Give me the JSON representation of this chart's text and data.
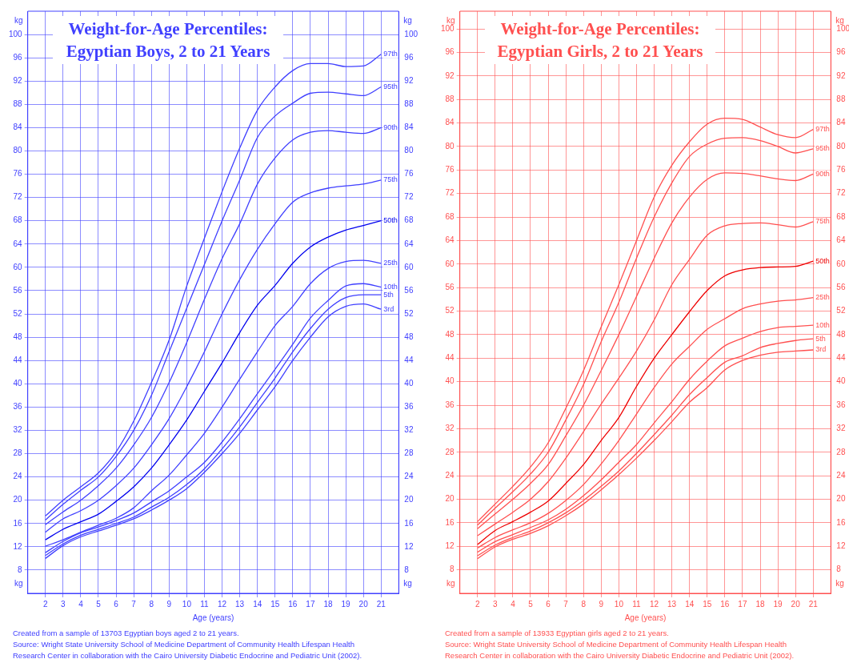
{
  "chart_data": [
    {
      "type": "line",
      "title": "Weight-for-Age Percentiles: Egyptian Boys, 2 to 21 Years",
      "xlabel": "Age (years)",
      "ylabel": "kg",
      "y2label": "kg",
      "x": [
        2,
        3,
        4,
        5,
        6,
        7,
        8,
        9,
        10,
        11,
        12,
        13,
        14,
        15,
        16,
        17,
        18,
        19,
        20,
        21
      ],
      "xlim": [
        1,
        22
      ],
      "xticks": [
        2,
        3,
        4,
        5,
        6,
        7,
        8,
        9,
        10,
        11,
        12,
        13,
        14,
        15,
        16,
        17,
        18,
        19,
        20,
        21
      ],
      "ylim": [
        4,
        104
      ],
      "yticks": [
        8,
        12,
        16,
        20,
        24,
        28,
        32,
        36,
        40,
        44,
        48,
        52,
        56,
        60,
        64,
        68,
        72,
        76,
        80,
        84,
        88,
        92,
        96,
        100
      ],
      "y2lim": [
        4,
        104
      ],
      "y2ticks": [
        8,
        12,
        16,
        20,
        24,
        28,
        32,
        36,
        40,
        44,
        48,
        52,
        56,
        60,
        64,
        68,
        72,
        76,
        80,
        84,
        88,
        92,
        96,
        100
      ],
      "grid": true,
      "legend": false,
      "marker": "none",
      "line_style": "solid",
      "series": [
        {
          "name": "97th",
          "color": "#4040ff",
          "values": [
            17.3,
            20,
            22.3,
            24.7,
            28.3,
            33.6,
            40.2,
            47.5,
            56.8,
            65,
            73,
            80.5,
            87,
            91,
            93.8,
            95,
            95,
            94.5,
            94.6,
            96.6
          ]
        },
        {
          "name": "95th",
          "color": "#4040ff",
          "values": [
            16.6,
            19.3,
            21.7,
            24,
            27.5,
            32,
            38,
            45.5,
            53,
            60.5,
            68,
            75,
            82.3,
            86,
            88.2,
            89.9,
            90.1,
            89.8,
            89.5,
            91
          ]
        },
        {
          "name": "90th",
          "color": "#4040ff",
          "values": [
            15.8,
            18,
            20,
            22.5,
            25.5,
            29.5,
            34.2,
            40.2,
            47.1,
            54.5,
            61.5,
            67.5,
            74.3,
            78.8,
            81.9,
            83.2,
            83.5,
            83.2,
            83,
            84
          ]
        },
        {
          "name": "75th",
          "color": "#4040ff",
          "values": [
            14.5,
            16.8,
            18.2,
            20,
            22.5,
            25.5,
            29.5,
            34,
            39.5,
            45.5,
            52,
            57.9,
            63.1,
            67.5,
            71.2,
            72.8,
            73.6,
            74,
            74.3,
            75
          ]
        },
        {
          "name": "50th",
          "color": "#0000ee",
          "values": [
            13.2,
            15,
            16.3,
            17.6,
            19.8,
            22.3,
            25.5,
            29.5,
            33.8,
            38.7,
            43.6,
            48.8,
            53.5,
            56.9,
            60.7,
            63.5,
            65.2,
            66.4,
            67.2,
            68
          ]
        },
        {
          "name": "25th",
          "color": "#4040ff",
          "values": [
            12.1,
            13.2,
            14.5,
            15.7,
            16.9,
            18.7,
            21.6,
            24.3,
            27.8,
            31.5,
            36,
            40.8,
            45.5,
            50,
            53.3,
            57.2,
            59.8,
            61,
            61.2,
            60.7
          ]
        },
        {
          "name": "10th",
          "color": "#4040ff",
          "values": [
            11,
            12.9,
            14.4,
            15.4,
            16.5,
            17.8,
            19.7,
            21.6,
            24,
            26.5,
            30,
            34,
            38.3,
            42.5,
            46.8,
            51.3,
            54.3,
            56.8,
            57.2,
            56.6
          ]
        },
        {
          "name": "5th",
          "color": "#4040ff",
          "values": [
            10.5,
            12.5,
            14,
            15,
            16,
            17.1,
            18.8,
            20.5,
            22.7,
            25.4,
            28.8,
            32.6,
            36.8,
            41,
            45.5,
            49.5,
            52.8,
            54.8,
            55.3,
            55.3
          ]
        },
        {
          "name": "3rd",
          "color": "#4040ff",
          "values": [
            10,
            12.2,
            13.7,
            14.7,
            15.7,
            16.8,
            18.3,
            20,
            22,
            24.8,
            28,
            31.5,
            35.5,
            39.5,
            44,
            48,
            51.5,
            53.3,
            53.7,
            52.8
          ]
        }
      ],
      "annotations": [
        "Created from a sample of 13703 Egyptian boys aged 2 to 21 years.",
        "Source: Wright State University School of  Medicine Department of Community Health Lifespan Health Research Center in collaboration with the Cairo University Diabetic Endocrine and Pediatric Unit (2002)."
      ]
    },
    {
      "type": "line",
      "title": "Weight-for-Age Percentiles: Egyptian Girls, 2 to 21 Years",
      "xlabel": "Age (years)",
      "ylabel": "kg",
      "y2label": "kg",
      "x": [
        2,
        3,
        4,
        5,
        6,
        7,
        8,
        9,
        10,
        11,
        12,
        13,
        14,
        15,
        16,
        17,
        18,
        19,
        20,
        21
      ],
      "xlim": [
        1,
        22
      ],
      "xticks": [
        2,
        3,
        4,
        5,
        6,
        7,
        8,
        9,
        10,
        11,
        12,
        13,
        14,
        15,
        16,
        17,
        18,
        19,
        20,
        21
      ],
      "ylim": [
        4,
        103
      ],
      "yticks": [
        8,
        12,
        16,
        20,
        24,
        28,
        32,
        36,
        40,
        44,
        48,
        52,
        56,
        60,
        64,
        68,
        72,
        76,
        80,
        84,
        88,
        92,
        96,
        100
      ],
      "y2lim": [
        4,
        103
      ],
      "y2ticks": [
        8,
        12,
        16,
        20,
        24,
        28,
        32,
        36,
        40,
        44,
        48,
        52,
        56,
        60,
        64,
        68,
        72,
        76,
        80,
        84,
        88,
        92,
        96,
        100
      ],
      "grid": true,
      "legend": false,
      "marker": "none",
      "line_style": "solid",
      "series": [
        {
          "name": "97th",
          "color": "#ff5050",
          "values": [
            16.2,
            19.2,
            22.2,
            25.5,
            29.6,
            35.5,
            41.9,
            49.3,
            56.5,
            64,
            71.4,
            76.8,
            80.8,
            83.8,
            84.8,
            84.6,
            83.3,
            82,
            81.5,
            82.9
          ]
        },
        {
          "name": "95th",
          "color": "#ff5050",
          "values": [
            15.6,
            18.5,
            21.3,
            24.3,
            28,
            33.5,
            39.5,
            46.8,
            53.5,
            61,
            68,
            73.8,
            78.3,
            80.4,
            81.4,
            81.5,
            81,
            80,
            78.9,
            79.6
          ]
        },
        {
          "name": "90th",
          "color": "#ff5050",
          "values": [
            15,
            17.5,
            20,
            22.7,
            25.9,
            30.8,
            36,
            41.9,
            48,
            54.5,
            61,
            67,
            71.4,
            74.4,
            75.5,
            75.4,
            75,
            74.5,
            74.2,
            75.3
          ]
        },
        {
          "name": "75th",
          "color": "#ff5050",
          "values": [
            13.8,
            15.8,
            17.8,
            20,
            23,
            27,
            31.5,
            36.2,
            40.6,
            45.2,
            50.5,
            56.5,
            60.8,
            64.9,
            66.5,
            66.9,
            67,
            66.7,
            66.3,
            67.2
          ]
        },
        {
          "name": "50th",
          "color": "#ee0000",
          "values": [
            12.3,
            14.7,
            16.2,
            17.8,
            19.7,
            22.7,
            25.9,
            30,
            33.9,
            39.2,
            44,
            48,
            51.9,
            55.5,
            58,
            59,
            59.4,
            59.5,
            59.6,
            60.5
          ]
        },
        {
          "name": "25th",
          "color": "#ff5050",
          "values": [
            11.7,
            13.5,
            14.8,
            16,
            17.6,
            19.8,
            22.5,
            26,
            30,
            34.5,
            39,
            43,
            46,
            48.9,
            50.7,
            52.4,
            53.2,
            53.7,
            53.9,
            54.3
          ]
        },
        {
          "name": "10th",
          "color": "#ff5050",
          "values": [
            11,
            12.8,
            14,
            15.2,
            16.5,
            18.3,
            20.6,
            23.3,
            26.3,
            29.3,
            33,
            36.6,
            40.4,
            43.5,
            46.1,
            47.4,
            48.5,
            49.2,
            49.4,
            49.6
          ]
        },
        {
          "name": "5th",
          "color": "#ff5050",
          "values": [
            10.4,
            12.2,
            13.5,
            14.6,
            16,
            17.7,
            19.8,
            22.2,
            24.8,
            27.8,
            31,
            34.3,
            37.8,
            40.7,
            43.3,
            44.4,
            45.8,
            46.5,
            47,
            47.3
          ]
        },
        {
          "name": "3rd",
          "color": "#ff5050",
          "values": [
            9.9,
            11.9,
            13.2,
            14.2,
            15.5,
            17.2,
            19.2,
            21.6,
            24.2,
            27,
            30,
            33.2,
            36.5,
            39,
            42,
            43.6,
            44.5,
            45,
            45.2,
            45.4
          ]
        }
      ],
      "annotations": [
        "Created from a sample of 13933 Egyptian girls aged 2 to 21 years.",
        "Source: Wright State University School of  Medicine Department of Community Health Lifespan Health Research Center in collaboration with the Cairo University Diabetic Endocrine and Pediatric Unit (2002)."
      ]
    }
  ]
}
